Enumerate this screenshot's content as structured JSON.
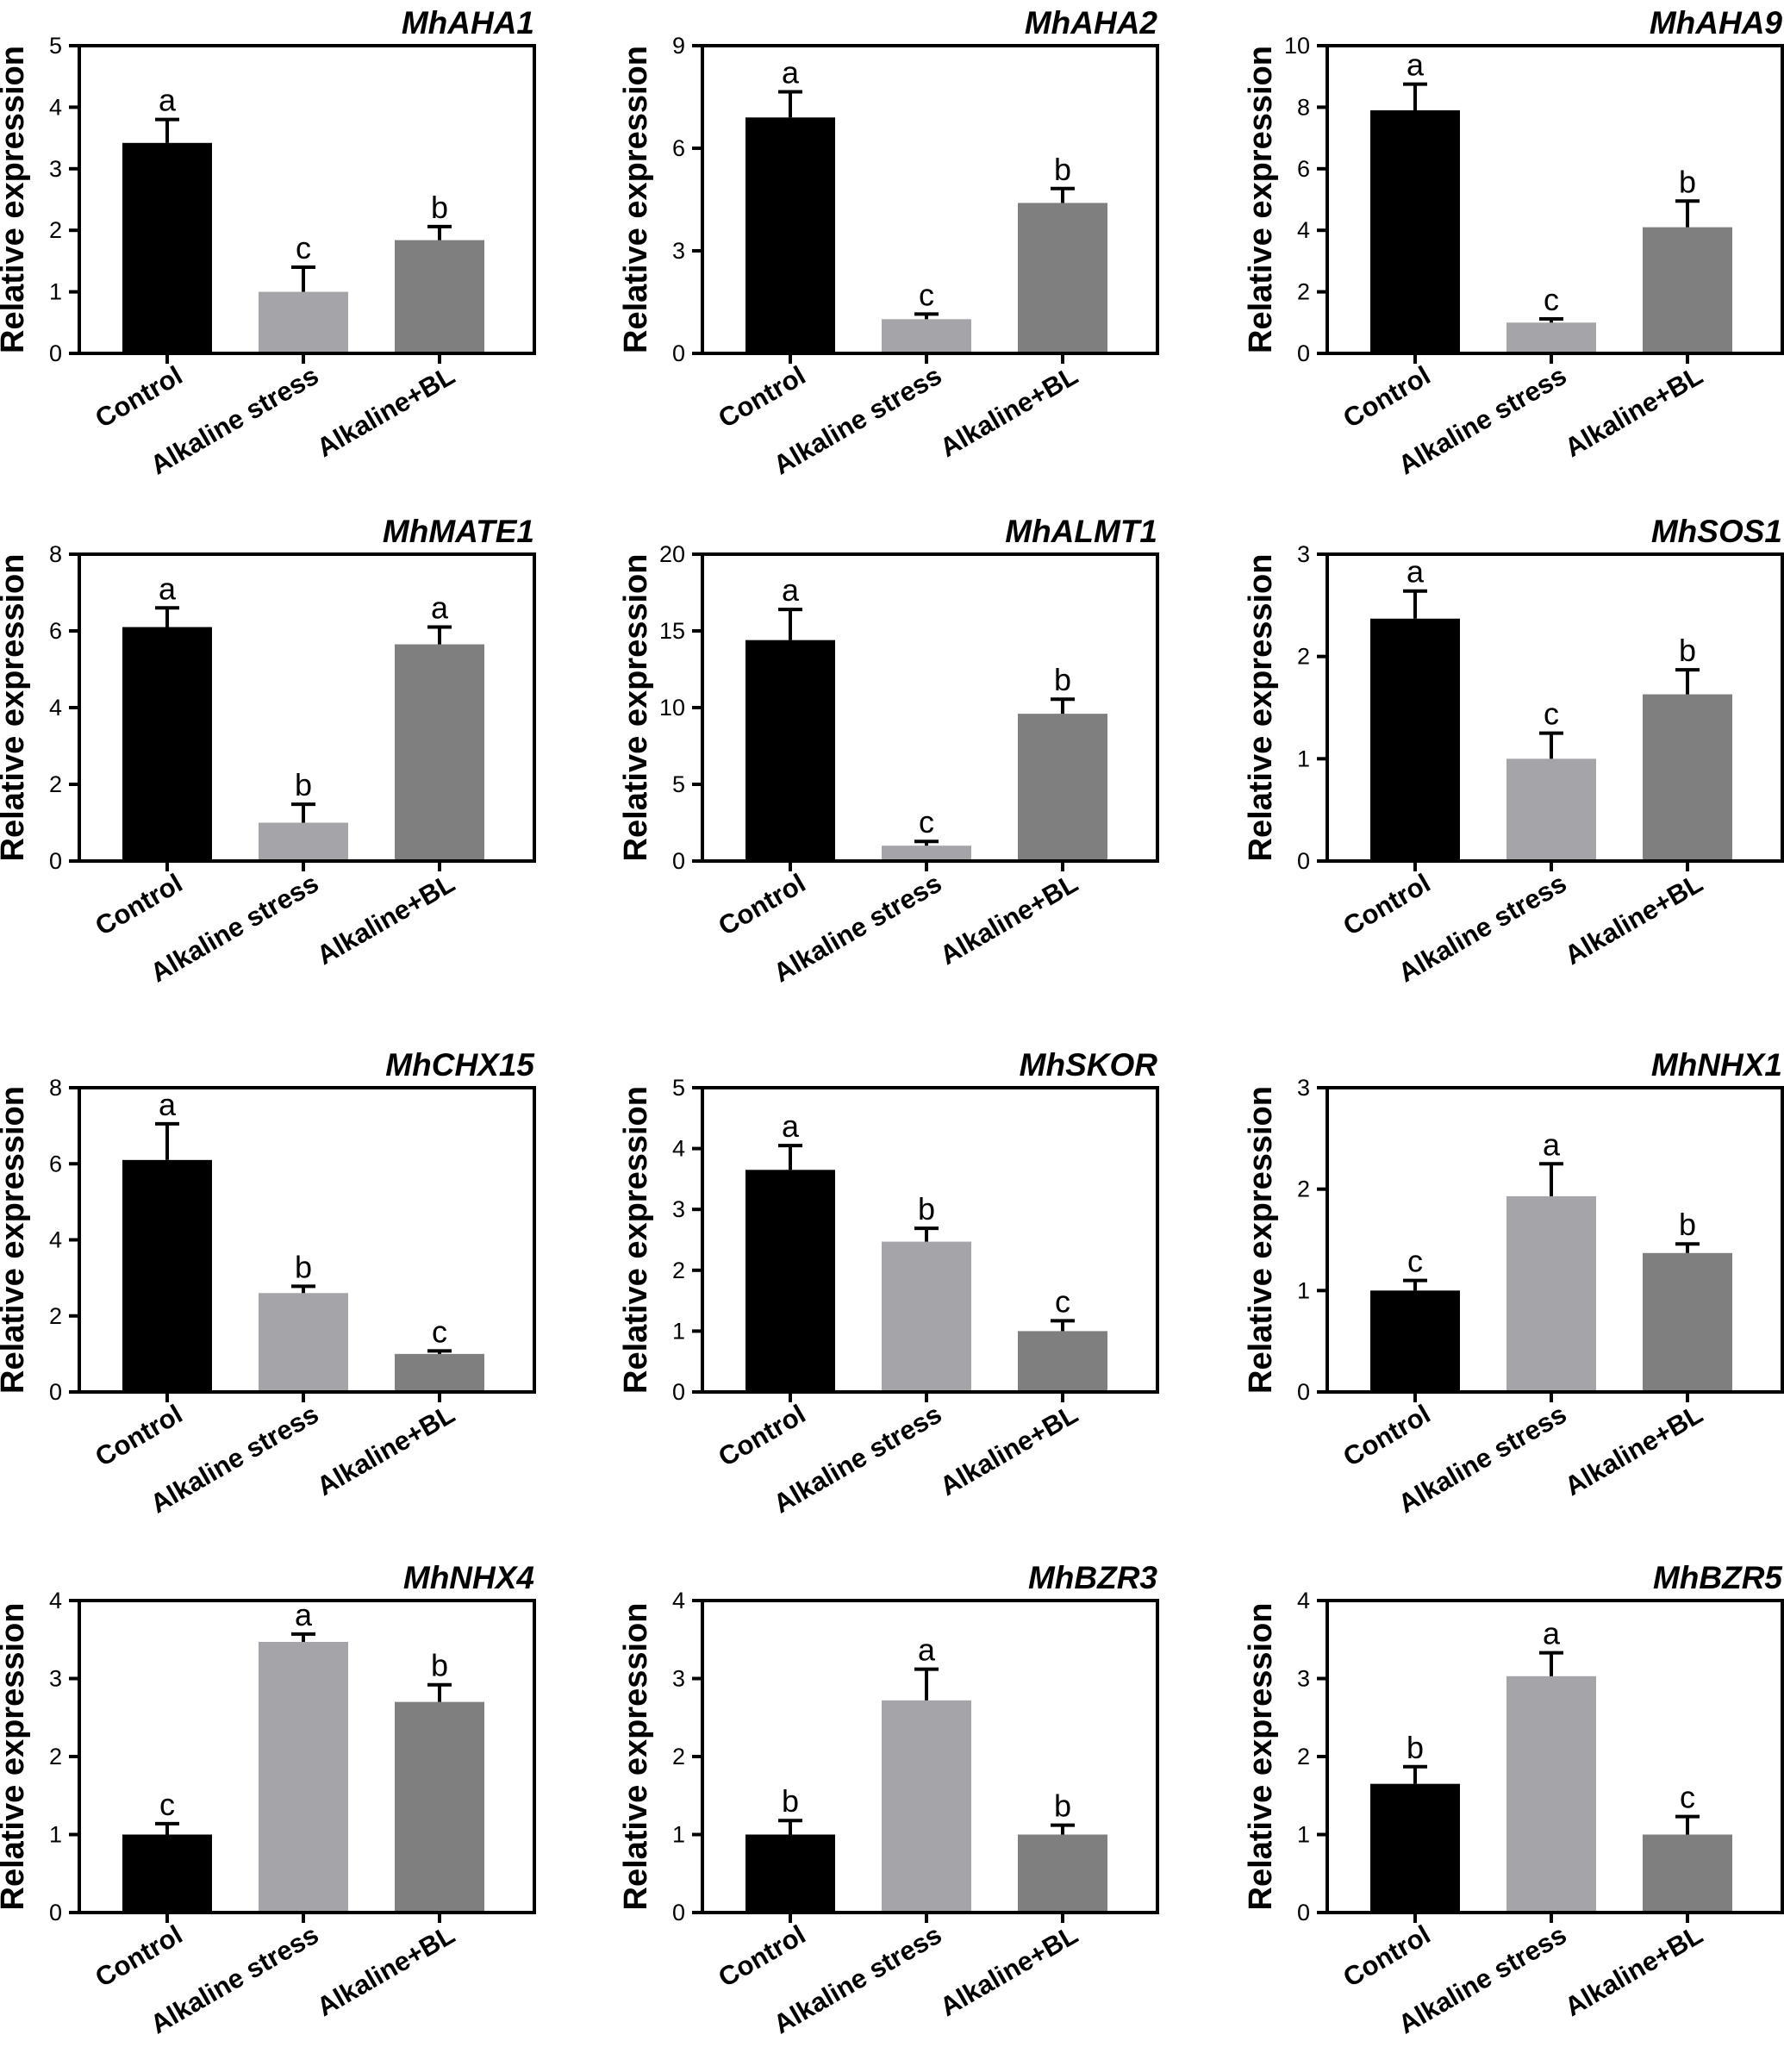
{
  "chart_data": [
    {
      "type": "bar",
      "title": "MhAHA1",
      "ylabel": "Relative expression",
      "categories": [
        "Control",
        "Alkaline stress",
        "Alkaline+BL"
      ],
      "values": [
        3.42,
        1.0,
        1.84
      ],
      "errors": [
        0.38,
        0.4,
        0.22
      ],
      "significance": [
        "a",
        "c",
        "b"
      ],
      "ylim": [
        0,
        5
      ],
      "yticks": [
        "0",
        "1",
        "2",
        "3",
        "4",
        "5"
      ],
      "colors": [
        "#000000",
        "#a4a4a9",
        "#7f7f7f"
      ]
    },
    {
      "type": "bar",
      "title": "MhAHA2",
      "ylabel": "Relative expression",
      "categories": [
        "Control",
        "Alkaline stress",
        "Alkaline+BL"
      ],
      "values": [
        6.9,
        1.0,
        4.4
      ],
      "errors": [
        0.75,
        0.15,
        0.42
      ],
      "significance": [
        "a",
        "c",
        "b"
      ],
      "ylim": [
        0,
        9
      ],
      "yticks": [
        "0",
        "3",
        "6",
        "9"
      ],
      "colors": [
        "#000000",
        "#a4a4a9",
        "#7f7f7f"
      ]
    },
    {
      "type": "bar",
      "title": "MhAHA9",
      "ylabel": "Relative expression",
      "categories": [
        "Control",
        "Alkaline stress",
        "Alkaline+BL"
      ],
      "values": [
        7.9,
        1.0,
        4.1
      ],
      "errors": [
        0.85,
        0.12,
        0.85
      ],
      "significance": [
        "a",
        "c",
        "b"
      ],
      "ylim": [
        0,
        10
      ],
      "yticks": [
        "0",
        "2",
        "4",
        "6",
        "8",
        "10"
      ],
      "colors": [
        "#000000",
        "#a4a4a9",
        "#7f7f7f"
      ]
    },
    {
      "type": "bar",
      "title": "MhMATE1",
      "ylabel": "Relative expression",
      "categories": [
        "Control",
        "Alkaline stress",
        "Alkaline+BL"
      ],
      "values": [
        6.1,
        1.0,
        5.65
      ],
      "errors": [
        0.5,
        0.48,
        0.45
      ],
      "significance": [
        "a",
        "b",
        "a"
      ],
      "ylim": [
        0,
        8
      ],
      "yticks": [
        "0",
        "2",
        "4",
        "6",
        "8"
      ],
      "colors": [
        "#000000",
        "#a4a4a9",
        "#7f7f7f"
      ]
    },
    {
      "type": "bar",
      "title": "MhALMT1",
      "ylabel": "Relative expression",
      "categories": [
        "Control",
        "Alkaline stress",
        "Alkaline+BL"
      ],
      "values": [
        14.4,
        1.0,
        9.6
      ],
      "errors": [
        2.0,
        0.28,
        0.95
      ],
      "significance": [
        "a",
        "c",
        "b"
      ],
      "ylim": [
        0,
        20
      ],
      "yticks": [
        "0",
        "5",
        "10",
        "15",
        "20"
      ],
      "colors": [
        "#000000",
        "#a4a4a9",
        "#7f7f7f"
      ]
    },
    {
      "type": "bar",
      "title": "MhSOS1",
      "ylabel": "Relative expression",
      "categories": [
        "Control",
        "Alkaline stress",
        "Alkaline+BL"
      ],
      "values": [
        2.37,
        1.0,
        1.63
      ],
      "errors": [
        0.27,
        0.25,
        0.24
      ],
      "significance": [
        "a",
        "c",
        "b"
      ],
      "ylim": [
        0,
        3
      ],
      "yticks": [
        "0",
        "1",
        "2",
        "3"
      ],
      "colors": [
        "#000000",
        "#a4a4a9",
        "#7f7f7f"
      ]
    },
    {
      "type": "bar",
      "title": "MhCHX15",
      "ylabel": "Relative expression",
      "categories": [
        "Control",
        "Alkaline stress",
        "Alkaline+BL"
      ],
      "values": [
        6.1,
        2.6,
        1.0
      ],
      "errors": [
        0.95,
        0.18,
        0.08
      ],
      "significance": [
        "a",
        "b",
        "c"
      ],
      "ylim": [
        0,
        8
      ],
      "yticks": [
        "0",
        "2",
        "4",
        "6",
        "8"
      ],
      "colors": [
        "#000000",
        "#a4a4a9",
        "#7f7f7f"
      ]
    },
    {
      "type": "bar",
      "title": "MhSKOR",
      "ylabel": "Relative expression",
      "categories": [
        "Control",
        "Alkaline stress",
        "Alkaline+BL"
      ],
      "values": [
        3.65,
        2.47,
        1.0
      ],
      "errors": [
        0.4,
        0.22,
        0.17
      ],
      "significance": [
        "a",
        "b",
        "c"
      ],
      "ylim": [
        0,
        5
      ],
      "yticks": [
        "0",
        "1",
        "2",
        "3",
        "4",
        "5"
      ],
      "colors": [
        "#000000",
        "#a4a4a9",
        "#7f7f7f"
      ]
    },
    {
      "type": "bar",
      "title": "MhNHX1",
      "ylabel": "Relative expression",
      "categories": [
        "Control",
        "Alkaline stress",
        "Alkaline+BL"
      ],
      "values": [
        1.0,
        1.93,
        1.37
      ],
      "errors": [
        0.1,
        0.32,
        0.09
      ],
      "significance": [
        "c",
        "a",
        "b"
      ],
      "ylim": [
        0,
        3
      ],
      "yticks": [
        "0",
        "1",
        "2",
        "3"
      ],
      "colors": [
        "#000000",
        "#a4a4a9",
        "#7f7f7f"
      ]
    },
    {
      "type": "bar",
      "title": "MhNHX4",
      "ylabel": "Relative expression",
      "categories": [
        "Control",
        "Alkaline stress",
        "Alkaline+BL"
      ],
      "values": [
        1.0,
        3.47,
        2.7
      ],
      "errors": [
        0.14,
        0.1,
        0.22
      ],
      "significance": [
        "c",
        "a",
        "b"
      ],
      "ylim": [
        0,
        4
      ],
      "yticks": [
        "0",
        "1",
        "2",
        "3",
        "4"
      ],
      "colors": [
        "#000000",
        "#a4a4a9",
        "#7f7f7f"
      ]
    },
    {
      "type": "bar",
      "title": "MhBZR3",
      "ylabel": "Relative expression",
      "categories": [
        "Control",
        "Alkaline stress",
        "Alkaline+BL"
      ],
      "values": [
        1.0,
        2.72,
        1.0
      ],
      "errors": [
        0.18,
        0.4,
        0.12
      ],
      "significance": [
        "b",
        "a",
        "b"
      ],
      "ylim": [
        0,
        4
      ],
      "yticks": [
        "0",
        "1",
        "2",
        "3",
        "4"
      ],
      "colors": [
        "#000000",
        "#a4a4a9",
        "#7f7f7f"
      ]
    },
    {
      "type": "bar",
      "title": "MhBZR5",
      "ylabel": "Relative expression",
      "categories": [
        "Control",
        "Alkaline stress",
        "Alkaline+BL"
      ],
      "values": [
        1.65,
        3.03,
        1.0
      ],
      "errors": [
        0.22,
        0.3,
        0.23
      ],
      "significance": [
        "b",
        "a",
        "c"
      ],
      "ylim": [
        0,
        4
      ],
      "yticks": [
        "0",
        "1",
        "2",
        "3",
        "4"
      ],
      "colors": [
        "#000000",
        "#a4a4a9",
        "#7f7f7f"
      ]
    }
  ]
}
